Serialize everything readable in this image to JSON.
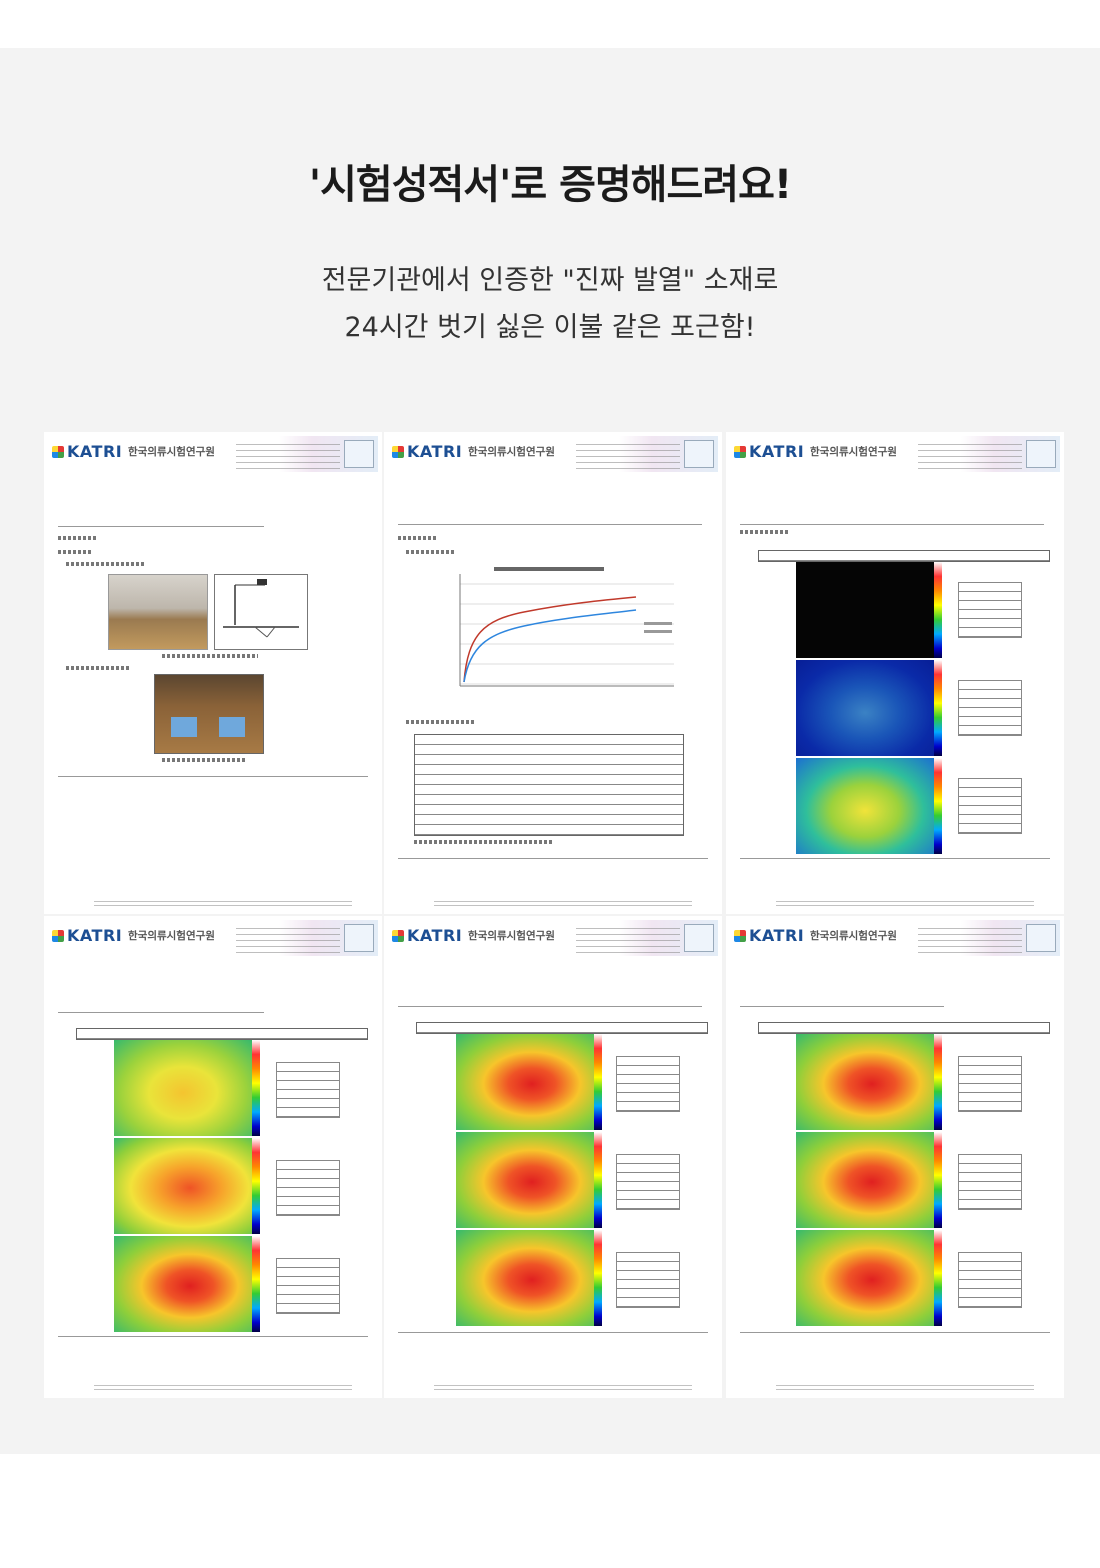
{
  "headline": "'시험성적서'로 증명해드려요!",
  "subtitle": {
    "line1": "전문기관에서 인증한 \"진짜 발열\" 소재로",
    "line2": "24시간 벗기 싫은 이불 같은 포근함!"
  },
  "reports": {
    "logo": "KATRI",
    "institute": "한국의류시험연구원",
    "pages": [
      {
        "kind": "photos"
      },
      {
        "kind": "chart"
      },
      {
        "kind": "thermal-1"
      },
      {
        "kind": "thermal-2"
      },
      {
        "kind": "thermal-3"
      },
      {
        "kind": "thermal-4"
      }
    ]
  },
  "colors": {
    "panel": "#f3f3f3",
    "headline": "#1b1b1b",
    "logo": "#1d4f93",
    "chart_red": "#c0392b",
    "chart_blue": "#2e86de"
  }
}
